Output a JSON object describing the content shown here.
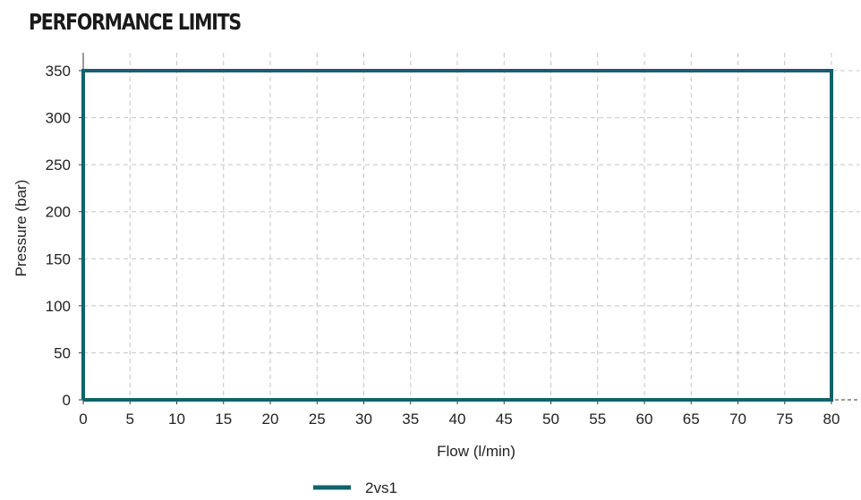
{
  "chart_data": {
    "type": "line",
    "title": "PERFORMANCE LIMITS",
    "xlabel": "Flow (l/min)",
    "ylabel": "Pressure (bar)",
    "xlim": [
      0,
      83
    ],
    "ylim": [
      0,
      350
    ],
    "x_ticks": [
      0,
      5,
      10,
      15,
      20,
      25,
      30,
      35,
      40,
      45,
      50,
      55,
      60,
      65,
      70,
      75,
      80
    ],
    "y_ticks": [
      0,
      50,
      100,
      150,
      200,
      250,
      300,
      350
    ],
    "grid": true,
    "legend_position": "bottom",
    "series": [
      {
        "name": "2vs1",
        "color": "#12626e",
        "x": [
          0,
          0,
          80,
          80,
          0
        ],
        "y": [
          0,
          350,
          350,
          0,
          0
        ]
      }
    ]
  }
}
